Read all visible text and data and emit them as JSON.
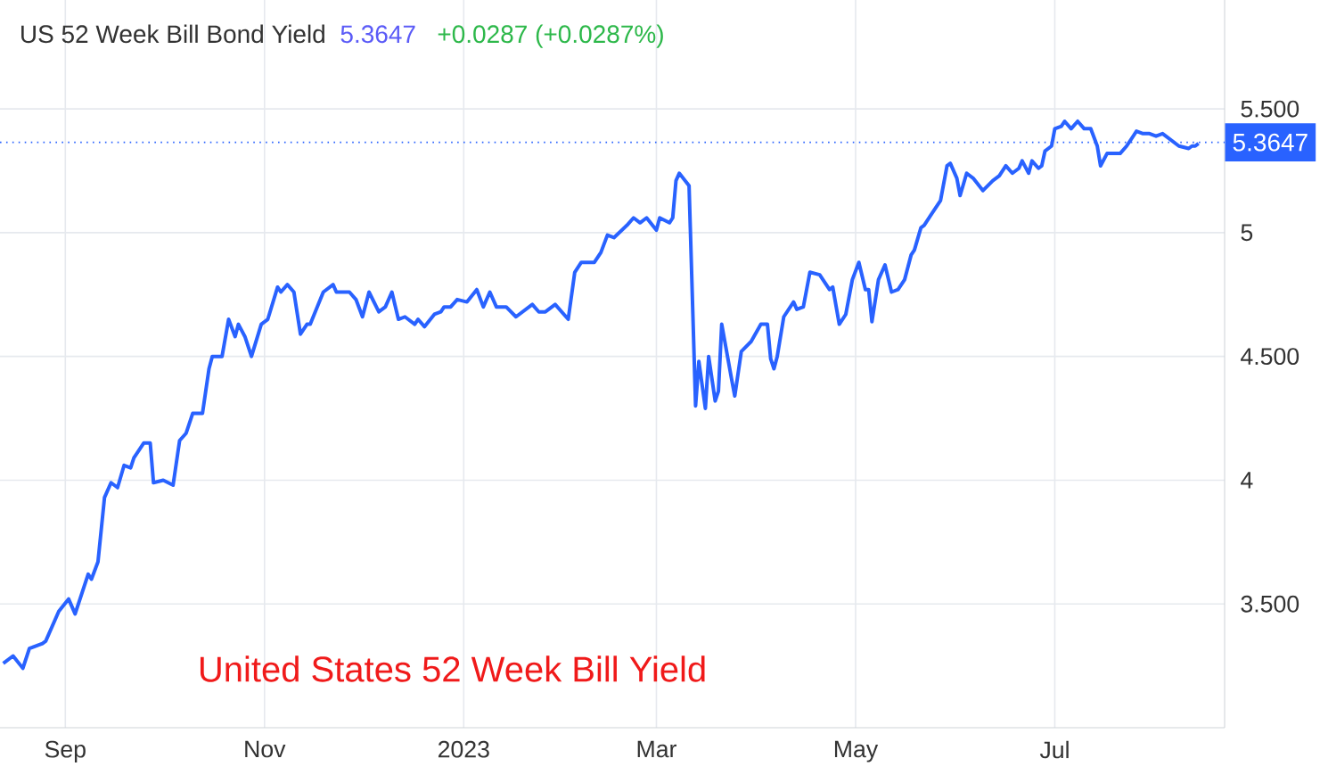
{
  "chart_data": {
    "type": "line",
    "title": "US 52 Week Bill Bond Yield",
    "annotations": [
      "5.3647",
      "+0.0287 (+0.0287%)",
      "United States 52 Week Bill Yield"
    ],
    "x": [
      "2022-08-13",
      "2022-08-16",
      "2022-08-19",
      "2022-08-21",
      "2022-08-25",
      "2022-08-26",
      "2022-08-30",
      "2022-09-02",
      "2022-09-04",
      "2022-09-08",
      "2022-09-09",
      "2022-09-11",
      "2022-09-13",
      "2022-09-15",
      "2022-09-17",
      "2022-09-19",
      "2022-09-21",
      "2022-09-22",
      "2022-09-25",
      "2022-09-27",
      "2022-09-28",
      "2022-10-01",
      "2022-10-04",
      "2022-10-06",
      "2022-10-08",
      "2022-10-10",
      "2022-10-13",
      "2022-10-15",
      "2022-10-16",
      "2022-10-19",
      "2022-10-21",
      "2022-10-23",
      "2022-10-24",
      "2022-10-26",
      "2022-10-28",
      "2022-10-31",
      "2022-11-02",
      "2022-11-05",
      "2022-11-06",
      "2022-11-08",
      "2022-11-10",
      "2022-11-12",
      "2022-11-14",
      "2022-11-15",
      "2022-11-19",
      "2022-11-22",
      "2022-11-23",
      "2022-11-27",
      "2022-11-29",
      "2022-12-01",
      "2022-12-03",
      "2022-12-06",
      "2022-12-08",
      "2022-12-10",
      "2022-12-12",
      "2022-12-14",
      "2022-12-17",
      "2022-12-18",
      "2022-12-20",
      "2022-12-23",
      "2022-12-25",
      "2022-12-26",
      "2022-12-28",
      "2022-12-30",
      "2023-01-02",
      "2023-01-05",
      "2023-01-07",
      "2023-01-09",
      "2023-01-11",
      "2023-01-14",
      "2023-01-17",
      "2023-01-22",
      "2023-01-24",
      "2023-01-26",
      "2023-01-29",
      "2023-02-02",
      "2023-02-04",
      "2023-02-06",
      "2023-02-10",
      "2023-02-12",
      "2023-02-14",
      "2023-02-16",
      "2023-02-20",
      "2023-02-22",
      "2023-02-24",
      "2023-02-26",
      "2023-03-01",
      "2023-03-02",
      "2023-03-05",
      "2023-03-06",
      "2023-03-07",
      "2023-03-08",
      "2023-03-11",
      "2023-03-13",
      "2023-03-14",
      "2023-03-16",
      "2023-03-17",
      "2023-03-19",
      "2023-03-20",
      "2023-03-21",
      "2023-03-24",
      "2023-03-25",
      "2023-03-27",
      "2023-03-30",
      "2023-04-02",
      "2023-04-04",
      "2023-04-05",
      "2023-04-06",
      "2023-04-07",
      "2023-04-09",
      "2023-04-12",
      "2023-04-13",
      "2023-04-15",
      "2023-04-17",
      "2023-04-20",
      "2023-04-23",
      "2023-04-24",
      "2023-04-26",
      "2023-04-28",
      "2023-04-30",
      "2023-05-02",
      "2023-05-04",
      "2023-05-05",
      "2023-05-06",
      "2023-05-08",
      "2023-05-10",
      "2023-05-12",
      "2023-05-14",
      "2023-05-16",
      "2023-05-18",
      "2023-05-19",
      "2023-05-21",
      "2023-05-22",
      "2023-05-24",
      "2023-05-27",
      "2023-05-29",
      "2023-05-30",
      "2023-06-01",
      "2023-06-02",
      "2023-06-04",
      "2023-06-06",
      "2023-06-09",
      "2023-06-12",
      "2023-06-14",
      "2023-06-16",
      "2023-06-18",
      "2023-06-20",
      "2023-06-21",
      "2023-06-23",
      "2023-06-24",
      "2023-06-26",
      "2023-06-27",
      "2023-06-28",
      "2023-06-30",
      "2023-07-01",
      "2023-07-03",
      "2023-07-04",
      "2023-07-06",
      "2023-07-08",
      "2023-07-10",
      "2023-07-12",
      "2023-07-14",
      "2023-07-15",
      "2023-07-17",
      "2023-07-21",
      "2023-07-23",
      "2023-07-26",
      "2023-07-28",
      "2023-07-30",
      "2023-08-01",
      "2023-08-03",
      "2023-08-04",
      "2023-08-06",
      "2023-08-08",
      "2023-08-11",
      "2023-08-12",
      "2023-08-13",
      "2023-08-14"
    ],
    "series": [
      {
        "color": "#2962ff",
        "values": [
          3.26,
          3.29,
          3.24,
          3.32,
          3.34,
          3.35,
          3.47,
          3.52,
          3.46,
          3.62,
          3.6,
          3.67,
          3.93,
          3.99,
          3.97,
          4.06,
          4.05,
          4.09,
          4.15,
          4.15,
          3.99,
          4.0,
          3.98,
          4.16,
          4.19,
          4.27,
          4.27,
          4.45,
          4.5,
          4.5,
          4.65,
          4.58,
          4.63,
          4.58,
          4.5,
          4.63,
          4.65,
          4.78,
          4.76,
          4.79,
          4.76,
          4.59,
          4.63,
          4.63,
          4.76,
          4.79,
          4.76,
          4.76,
          4.73,
          4.66,
          4.76,
          4.68,
          4.7,
          4.76,
          4.65,
          4.66,
          4.63,
          4.65,
          4.62,
          4.67,
          4.68,
          4.7,
          4.7,
          4.73,
          4.72,
          4.77,
          4.7,
          4.76,
          4.7,
          4.7,
          4.66,
          4.71,
          4.68,
          4.68,
          4.71,
          4.65,
          4.84,
          4.88,
          4.88,
          4.92,
          4.99,
          4.98,
          5.03,
          5.06,
          5.04,
          5.06,
          5.01,
          5.06,
          5.04,
          5.06,
          5.21,
          5.24,
          5.19,
          4.3,
          4.48,
          4.29,
          4.5,
          4.32,
          4.36,
          4.63,
          4.41,
          4.34,
          4.52,
          4.56,
          4.63,
          4.63,
          4.49,
          4.45,
          4.5,
          4.66,
          4.72,
          4.69,
          4.7,
          4.84,
          4.83,
          4.77,
          4.78,
          4.63,
          4.67,
          4.81,
          4.88,
          4.77,
          4.77,
          4.64,
          4.81,
          4.87,
          4.76,
          4.77,
          4.81,
          4.91,
          4.93,
          5.02,
          5.03,
          5.07,
          5.13,
          5.27,
          5.28,
          5.22,
          5.15,
          5.24,
          5.22,
          5.17,
          5.21,
          5.23,
          5.27,
          5.24,
          5.26,
          5.29,
          5.24,
          5.29,
          5.26,
          5.27,
          5.33,
          5.35,
          5.42,
          5.43,
          5.45,
          5.42,
          5.45,
          5.42,
          5.42,
          5.35,
          5.27,
          5.32,
          5.32,
          5.35,
          5.41,
          5.4,
          5.4,
          5.39,
          5.4,
          5.39,
          5.37,
          5.35,
          5.34,
          5.35,
          5.35,
          5.36
        ]
      }
    ],
    "xlim": [
      "2022-08-12",
      "2023-08-22"
    ],
    "ylim": [
      3.0,
      5.94
    ],
    "xticks": [
      {
        "value": "2022-09-01",
        "label": "Sep"
      },
      {
        "value": "2022-11-01",
        "label": "Nov"
      },
      {
        "value": "2023-01-01",
        "label": "2023"
      },
      {
        "value": "2023-03-01",
        "label": "Mar"
      },
      {
        "value": "2023-05-01",
        "label": "May"
      },
      {
        "value": "2023-07-01",
        "label": "Jul"
      }
    ],
    "yticks": [
      {
        "value": 3.5,
        "label": "3.500"
      },
      4,
      {
        "value": 4.5,
        "label": "4.500"
      },
      5,
      {
        "value": 5.5,
        "label": "5.500"
      }
    ],
    "grid": true,
    "ref_lines": [
      {
        "axis": "y",
        "value": 5.3647,
        "label": "5.3647",
        "color": "#2962ff",
        "line_style": "dotted"
      }
    ]
  }
}
